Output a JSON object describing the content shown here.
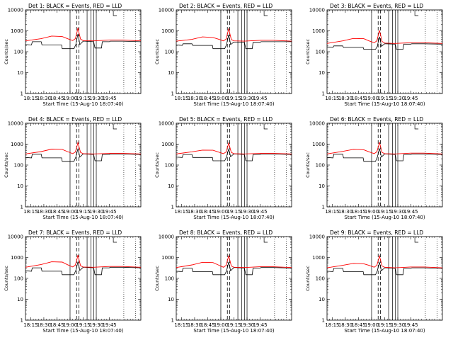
{
  "chart_data": {
    "type": "line",
    "layout": "3x3 grid of panels",
    "shared": {
      "ylabel": "Counts/sec",
      "xlabel": "Start Time (15-Aug-10 18:07:40)",
      "x_tick_labels": [
        "18:15",
        "18:30",
        "18:45",
        "19:00",
        "19:15",
        "19:30",
        "19:45"
      ],
      "y_scale": "log",
      "ylim": [
        1,
        10000
      ],
      "y_tick_labels": [
        "1",
        "10",
        "100",
        "1000",
        "10000"
      ],
      "x_range_minutes": [
        -2,
        42
      ],
      "series": [
        {
          "color": "#000000",
          "label": "BLACK = Events"
        },
        {
          "color": "#ff0000",
          "label": "RED = LLD"
        }
      ],
      "dotted_lines_x": [
        35.5,
        40.0
      ],
      "solid_lines_x": [
        15,
        21.5,
        23.0,
        24.0,
        25.0
      ],
      "dashed_lines_x": [
        17.5,
        18.4
      ],
      "bracket_marker": {
        "x": 31.5,
        "label": "L"
      }
    },
    "panels": [
      {
        "title": "Det 1: BLACK = Events, RED = LLD",
        "events": {
          "x": [
            -2,
            0.3,
            0.6,
            4,
            4.3,
            11.8,
            12,
            15,
            15.5,
            16.5,
            17.2,
            17.6,
            18,
            18.4,
            18.7,
            20,
            20.5,
            24,
            24.5,
            27,
            27.3,
            30,
            30.3,
            35,
            42
          ],
          "y": [
            220,
            210,
            300,
            300,
            210,
            210,
            140,
            140,
            140,
            140,
            220,
            400,
            700,
            400,
            220,
            320,
            320,
            300,
            150,
            150,
            300,
            300,
            320,
            320,
            300
          ]
        },
        "lld": {
          "x": [
            -2,
            4,
            8,
            12,
            14,
            16,
            17,
            17.6,
            18,
            18.4,
            19,
            20,
            24,
            30,
            35,
            42
          ],
          "y": [
            330,
            420,
            560,
            530,
            420,
            340,
            420,
            800,
            1400,
            800,
            400,
            340,
            330,
            360,
            360,
            330
          ]
        }
      },
      {
        "title": "Det 2: BLACK = Events, RED = LLD",
        "events": {
          "x": [
            -2,
            0.3,
            0.6,
            4,
            4.3,
            11.8,
            12,
            15,
            15.5,
            16.5,
            17.2,
            17.6,
            18,
            18.4,
            18.7,
            20,
            20.5,
            24,
            24.5,
            27,
            27.3,
            30,
            30.3,
            35,
            42
          ],
          "y": [
            210,
            200,
            240,
            240,
            200,
            200,
            140,
            140,
            140,
            140,
            220,
            380,
            650,
            380,
            220,
            290,
            290,
            280,
            140,
            140,
            280,
            280,
            300,
            300,
            300
          ]
        },
        "lld": {
          "x": [
            -2,
            4,
            8,
            12,
            14,
            16,
            17,
            17.6,
            18,
            18.4,
            19,
            20,
            24,
            30,
            35,
            42
          ],
          "y": [
            320,
            390,
            510,
            480,
            400,
            330,
            400,
            780,
            1300,
            780,
            380,
            330,
            320,
            350,
            350,
            320
          ]
        }
      },
      {
        "title": "Det 3: BLACK = Events, RED = LLD",
        "events": {
          "x": [
            -2,
            0.3,
            0.6,
            4,
            4.3,
            11.8,
            12,
            15,
            15.5,
            16.5,
            17.2,
            17.6,
            18,
            18.4,
            18.7,
            20,
            20.5,
            24,
            24.5,
            27,
            27.3,
            30,
            30.3,
            35,
            42
          ],
          "y": [
            170,
            160,
            190,
            190,
            160,
            160,
            130,
            130,
            130,
            130,
            180,
            320,
            520,
            320,
            180,
            240,
            240,
            230,
            130,
            130,
            230,
            230,
            240,
            240,
            230
          ]
        },
        "lld": {
          "x": [
            -2,
            4,
            8,
            12,
            14,
            16,
            17,
            17.6,
            18,
            18.4,
            19,
            20,
            24,
            30,
            35,
            42
          ],
          "y": [
            250,
            330,
            430,
            420,
            330,
            270,
            330,
            650,
            1050,
            650,
            310,
            260,
            250,
            270,
            270,
            250
          ]
        }
      },
      {
        "title": "Det 4: BLACK = Events, RED = LLD",
        "events": {
          "x": [
            -2,
            0.3,
            0.6,
            4,
            4.3,
            11.8,
            12,
            15,
            15.5,
            16.5,
            17.2,
            17.6,
            18,
            18.4,
            18.7,
            20,
            20.5,
            24,
            24.5,
            27,
            27.3,
            30,
            30.3,
            35,
            42
          ],
          "y": [
            230,
            220,
            330,
            330,
            220,
            220,
            150,
            150,
            150,
            150,
            240,
            380,
            600,
            380,
            240,
            340,
            340,
            320,
            160,
            160,
            320,
            320,
            340,
            340,
            320
          ]
        },
        "lld": {
          "x": [
            -2,
            4,
            8,
            12,
            14,
            16,
            17,
            17.6,
            18,
            18.4,
            19,
            20,
            24,
            30,
            35,
            42
          ],
          "y": [
            340,
            440,
            580,
            560,
            440,
            350,
            420,
            760,
            1200,
            760,
            400,
            350,
            340,
            360,
            360,
            340
          ]
        }
      },
      {
        "title": "Det 5: BLACK = Events, RED = LLD",
        "events": {
          "x": [
            -2,
            0.3,
            0.6,
            4,
            4.3,
            11.8,
            12,
            15,
            15.5,
            16.5,
            17.2,
            17.6,
            18,
            18.4,
            18.7,
            20,
            20.5,
            24,
            24.5,
            27,
            27.3,
            30,
            30.3,
            35,
            42
          ],
          "y": [
            240,
            230,
            320,
            320,
            230,
            230,
            160,
            160,
            160,
            160,
            250,
            380,
            580,
            380,
            250,
            340,
            340,
            320,
            160,
            160,
            320,
            320,
            340,
            340,
            320
          ]
        },
        "lld": {
          "x": [
            -2,
            4,
            8,
            12,
            14,
            16,
            17,
            17.6,
            18,
            18.4,
            19,
            20,
            24,
            30,
            35,
            42
          ],
          "y": [
            340,
            430,
            520,
            510,
            420,
            350,
            420,
            740,
            1150,
            740,
            400,
            350,
            340,
            360,
            360,
            340
          ]
        }
      },
      {
        "title": "Det 6: BLACK = Events, RED = LLD",
        "events": {
          "x": [
            -2,
            0.3,
            0.6,
            4,
            4.3,
            11.8,
            12,
            15,
            15.5,
            16.5,
            17.2,
            17.6,
            18,
            18.4,
            18.7,
            20,
            20.5,
            24,
            24.5,
            27,
            27.3,
            30,
            30.3,
            35,
            42
          ],
          "y": [
            230,
            220,
            330,
            330,
            220,
            220,
            150,
            150,
            150,
            150,
            240,
            380,
            620,
            380,
            240,
            340,
            340,
            320,
            160,
            160,
            320,
            320,
            340,
            340,
            320
          ]
        },
        "lld": {
          "x": [
            -2,
            4,
            8,
            12,
            14,
            16,
            17,
            17.6,
            18,
            18.4,
            19,
            20,
            24,
            30,
            35,
            42
          ],
          "y": [
            340,
            450,
            560,
            540,
            430,
            350,
            430,
            780,
            1250,
            780,
            400,
            350,
            340,
            370,
            370,
            340
          ]
        }
      },
      {
        "title": "Det 7: BLACK = Events, RED = LLD",
        "events": {
          "x": [
            -2,
            0.3,
            0.6,
            4,
            4.3,
            11.8,
            12,
            15,
            15.5,
            16.5,
            17.2,
            17.6,
            18,
            18.4,
            18.7,
            20,
            20.5,
            24,
            24.5,
            27,
            27.3,
            30,
            30.3,
            35,
            42
          ],
          "y": [
            230,
            220,
            320,
            320,
            220,
            220,
            150,
            150,
            150,
            150,
            240,
            380,
            620,
            380,
            240,
            340,
            340,
            320,
            150,
            150,
            320,
            320,
            340,
            340,
            320
          ]
        },
        "lld": {
          "x": [
            -2,
            4,
            8,
            12,
            14,
            16,
            17,
            17.6,
            18,
            18.4,
            19,
            20,
            24,
            30,
            35,
            42
          ],
          "y": [
            340,
            460,
            620,
            600,
            450,
            350,
            430,
            800,
            1300,
            800,
            400,
            350,
            340,
            370,
            370,
            340
          ]
        }
      },
      {
        "title": "Det 8: BLACK = Events, RED = LLD",
        "events": {
          "x": [
            -2,
            0.3,
            0.6,
            4,
            4.3,
            11.8,
            12,
            15,
            15.5,
            16.5,
            17.2,
            17.6,
            18,
            18.4,
            18.7,
            20,
            20.5,
            24,
            24.5,
            27,
            27.3,
            30,
            30.3,
            35,
            42
          ],
          "y": [
            220,
            210,
            310,
            310,
            210,
            210,
            150,
            150,
            150,
            150,
            230,
            370,
            600,
            370,
            230,
            330,
            330,
            310,
            150,
            150,
            310,
            310,
            330,
            330,
            310
          ]
        },
        "lld": {
          "x": [
            -2,
            4,
            8,
            12,
            14,
            16,
            17,
            17.6,
            18,
            18.4,
            19,
            20,
            24,
            30,
            35,
            42
          ],
          "y": [
            330,
            440,
            590,
            570,
            440,
            340,
            420,
            780,
            1250,
            780,
            390,
            340,
            330,
            360,
            360,
            330
          ]
        }
      },
      {
        "title": "Det 9: BLACK = Events, RED = LLD",
        "events": {
          "x": [
            -2,
            0.3,
            0.6,
            4,
            4.3,
            11.8,
            12,
            15,
            15.5,
            16.5,
            17.2,
            17.6,
            18,
            18.4,
            18.7,
            20,
            20.5,
            24,
            24.5,
            27,
            27.3,
            30,
            30.3,
            35,
            42
          ],
          "y": [
            220,
            210,
            300,
            300,
            210,
            210,
            150,
            150,
            150,
            150,
            230,
            370,
            580,
            370,
            230,
            320,
            320,
            300,
            150,
            150,
            300,
            300,
            320,
            320,
            300
          ]
        },
        "lld": {
          "x": [
            -2,
            4,
            8,
            12,
            14,
            16,
            17,
            17.6,
            18,
            18.4,
            19,
            20,
            24,
            30,
            35,
            42
          ],
          "y": [
            320,
            420,
            520,
            500,
            420,
            340,
            420,
            760,
            1200,
            760,
            390,
            340,
            320,
            350,
            350,
            320
          ]
        }
      }
    ]
  }
}
